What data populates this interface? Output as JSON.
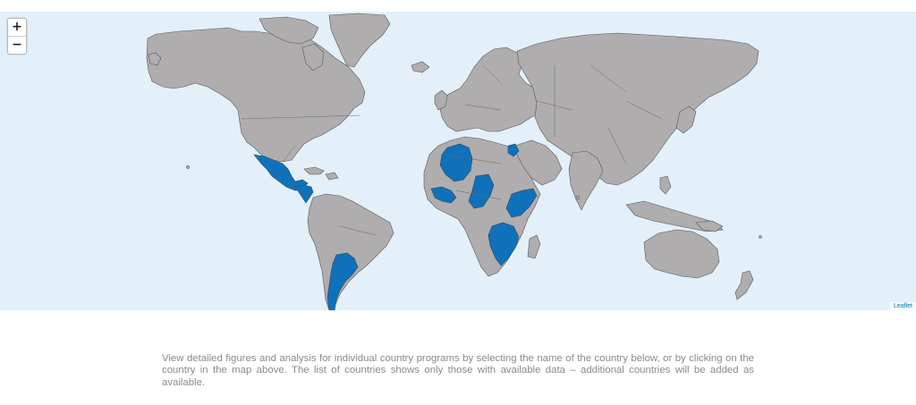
{
  "map": {
    "zoom_in_label": "+",
    "zoom_out_label": "−",
    "attribution_label": "Leaflet",
    "colors": {
      "ocean": "#e3f0f9",
      "land": "#b0adae",
      "highlight": "#0f71ba"
    },
    "highlighted_countries": [
      "Mexico",
      "Guatemala",
      "Honduras",
      "Nicaragua",
      "Costa Rica",
      "Panama",
      "Argentina",
      "Algeria",
      "Mali",
      "Burkina Faso",
      "Ghana",
      "Togo",
      "Liberia",
      "Sudan",
      "Central African Republic",
      "Somalia",
      "Kenya",
      "Tanzania",
      "Malawi",
      "Zambia",
      "Mozambique",
      "Jordan"
    ]
  },
  "description": "View detailed figures and analysis for individual country programs by selecting the name of the country below, or by clicking on the country in the map above. The list of countries shows only those with available data – additional countries will be added as available."
}
